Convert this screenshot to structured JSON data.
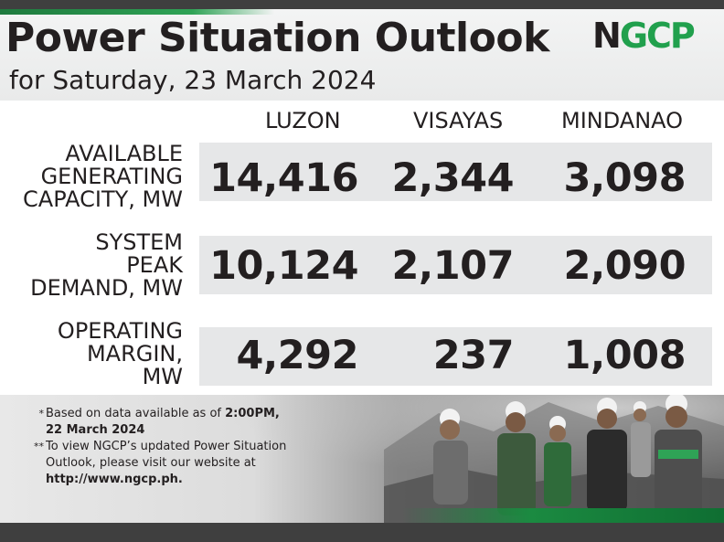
{
  "header": {
    "title": "Power Situation Outlook",
    "subtitle": "for Saturday, 23 March 2024",
    "logo_text_n": "N",
    "logo_text_gcp": "GCP",
    "logo_name": "NGCP"
  },
  "columns": [
    "LUZON",
    "VISAYAS",
    "MINDANAO"
  ],
  "rows": [
    {
      "label_lines": [
        "AVAILABLE",
        "GENERATING",
        "CAPACITY, MW"
      ],
      "values": [
        "14,416",
        "2,344",
        "3,098"
      ]
    },
    {
      "label_lines": [
        "SYSTEM",
        "PEAK",
        "DEMAND, MW"
      ],
      "values": [
        "10,124",
        "2,107",
        "2,090"
      ]
    },
    {
      "label_lines": [
        "OPERATING",
        "MARGIN,",
        "MW"
      ],
      "values": [
        "4,292",
        "237",
        "1,008"
      ]
    }
  ],
  "notes": [
    {
      "mark": "*",
      "text_before": "Based on data available as of ",
      "bold_1": "2:00PM,",
      "bold_2": "22 March 2024",
      "text_after": ""
    },
    {
      "mark": "**",
      "line_1": "To view NGCP’s updated Power Situation",
      "line_2": "Outlook, please visit our website at",
      "bold_url": "http://www.ngcp.ph."
    }
  ],
  "colors": {
    "brand_green": "#21a04d",
    "dark_band": "#3f3f3f",
    "text": "#231f20",
    "row_band": "#e6e7e8"
  }
}
